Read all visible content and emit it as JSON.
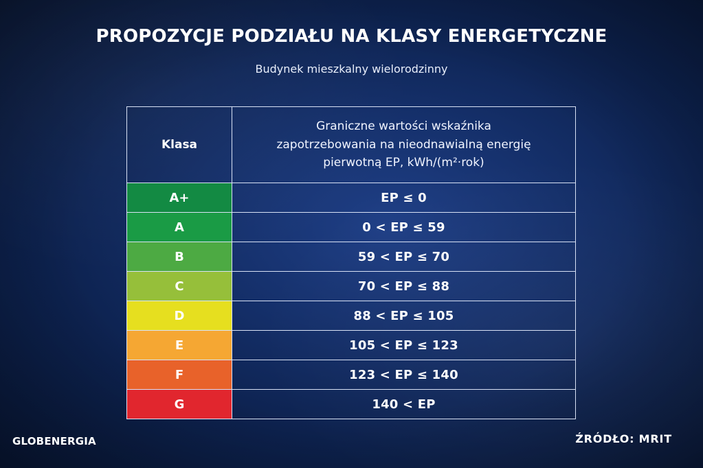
{
  "title": "PROPOZYCJE PODZIAŁU NA KLASY ENERGETYCZNE",
  "subtitle": "Budynek mieszkalny wielorodzinny",
  "table": {
    "header_class": "Klasa",
    "header_value_lines": [
      "Graniczne wartości wskaźnika",
      "zapotrzebowania na nieodnawialną energię",
      "pierwotną EP, kWh/(m²·rok)"
    ],
    "rows": [
      {
        "klasa": "A+",
        "value": "EP ≤ 0",
        "color": "#138a43"
      },
      {
        "klasa": "A",
        "value": "0 < EP ≤ 59",
        "color": "#1a9b45"
      },
      {
        "klasa": "B",
        "value": "59 < EP ≤ 70",
        "color": "#4daa43"
      },
      {
        "klasa": "C",
        "value": "70 < EP ≤ 88",
        "color": "#96bf3a"
      },
      {
        "klasa": "D",
        "value": "88 < EP ≤ 105",
        "color": "#e6df1f"
      },
      {
        "klasa": "E",
        "value": "105 < EP ≤ 123",
        "color": "#f5a733"
      },
      {
        "klasa": "F",
        "value": "123 < EP ≤ 140",
        "color": "#e8622a"
      },
      {
        "klasa": "G",
        "value": "140 < EP",
        "color": "#e1262e"
      }
    ]
  },
  "footer": {
    "logo": "GLOBENERGIA",
    "source": "ŹRÓDŁO: MRIT"
  }
}
